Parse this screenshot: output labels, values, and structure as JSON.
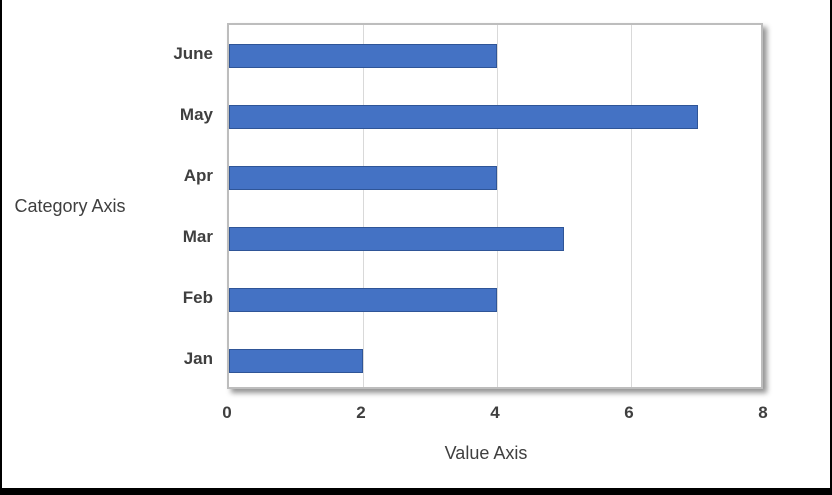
{
  "chart_data": {
    "type": "bar",
    "orientation": "horizontal",
    "title": "",
    "categories": [
      "June",
      "May",
      "Apr",
      "Mar",
      "Feb",
      "Jan"
    ],
    "values": [
      4,
      7,
      4,
      5,
      4,
      2
    ],
    "xlabel": "Value Axis",
    "ylabel": "Category Axis",
    "xlim": [
      0,
      8
    ],
    "xticks": [
      0,
      2,
      4,
      6,
      8
    ],
    "grid": "vertical-gridlines",
    "legend": "none",
    "colors": {
      "bar_fill": "#4472C4",
      "bar_border": "#2F5597",
      "gridline": "#D9D9D9",
      "plot_border": "#BDBDBD",
      "label_text": "#3F3F3F",
      "frame_border": "#000000",
      "background": "#FFFFFF"
    }
  }
}
